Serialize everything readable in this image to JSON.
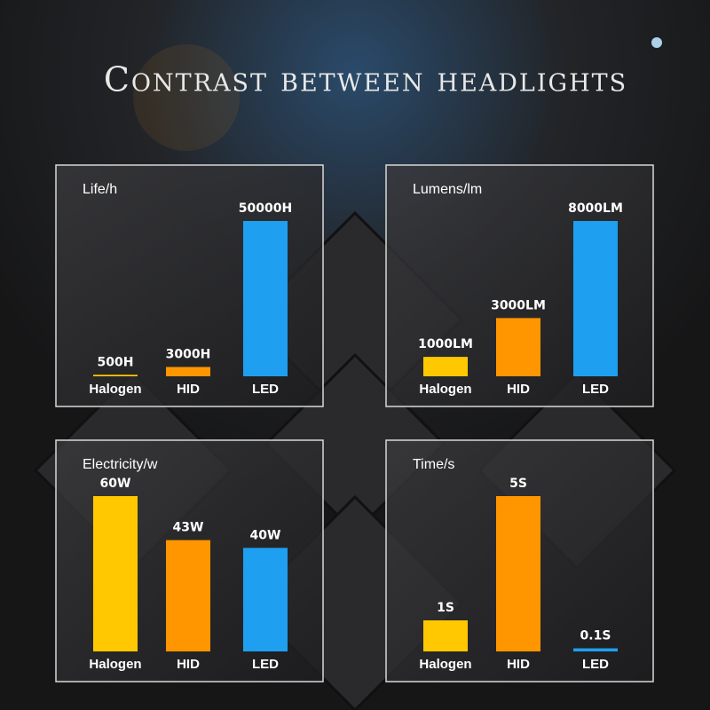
{
  "title": "Contrast between headlights",
  "chart_data": [
    {
      "type": "bar",
      "title": "Life/h",
      "categories": [
        "Halogen",
        "HID",
        "LED"
      ],
      "values": [
        500,
        3000,
        50000
      ],
      "value_labels": [
        "500H",
        "3000H",
        "50000H"
      ],
      "colors": [
        "#ffc800",
        "#ff9600",
        "#1e9ff0"
      ]
    },
    {
      "type": "bar",
      "title": "Lumens/lm",
      "categories": [
        "Halogen",
        "HID",
        "LED"
      ],
      "values": [
        1000,
        3000,
        8000
      ],
      "value_labels": [
        "1000LM",
        "3000LM",
        "8000LM"
      ],
      "colors": [
        "#ffc800",
        "#ff9600",
        "#1e9ff0"
      ]
    },
    {
      "type": "bar",
      "title": "Electricity/w",
      "categories": [
        "Halogen",
        "HID",
        "LED"
      ],
      "values": [
        60,
        43,
        40
      ],
      "value_labels": [
        "60W",
        "43W",
        "40W"
      ],
      "colors": [
        "#ffc800",
        "#ff9600",
        "#1e9ff0"
      ]
    },
    {
      "type": "bar",
      "title": "Time/s",
      "categories": [
        "Halogen",
        "HID",
        "LED"
      ],
      "values": [
        1,
        5,
        0.1
      ],
      "value_labels": [
        "1S",
        "5S",
        "0.1S"
      ],
      "colors": [
        "#ffc800",
        "#ff9600",
        "#1e9ff0"
      ]
    }
  ]
}
